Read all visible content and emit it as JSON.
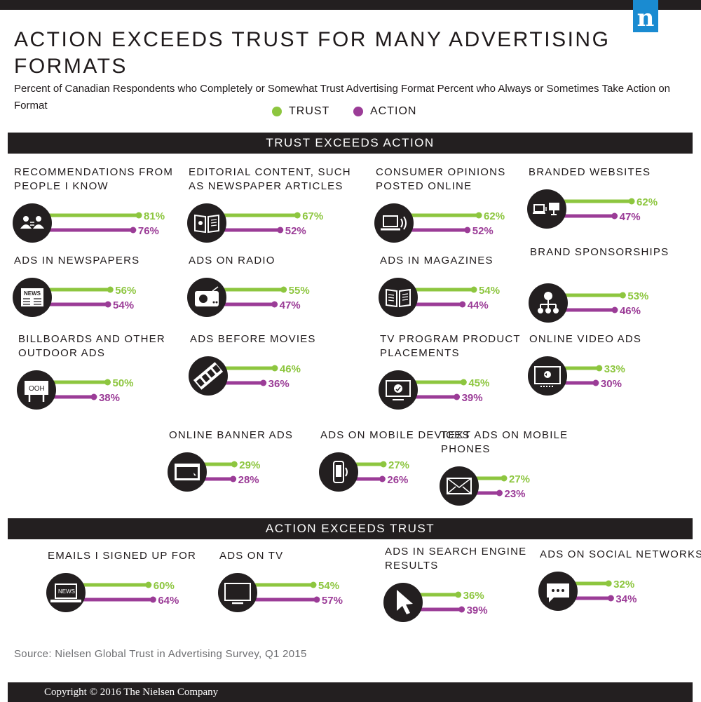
{
  "header": {
    "title": "ACTION EXCEEDS TRUST FOR MANY ADVERTISING FORMATS",
    "subtitle": "Percent of Canadian Respondents who Completely or Somewhat Trust Advertising Format Percent who Always or Sometimes Take Action on Format",
    "logo_letter": "n"
  },
  "legend": {
    "trust_label": "TRUST",
    "action_label": "ACTION"
  },
  "colors": {
    "trust": "#8dc63f",
    "action": "#9b3c97",
    "dark": "#231f20"
  },
  "sections": {
    "trust_exceeds": "TRUST EXCEEDS ACTION",
    "action_exceeds": "ACTION EXCEEDS TRUST"
  },
  "source": "Source: Nielsen Global Trust in Advertising Survey, Q1 2015",
  "copyright": "Copyright © 2016 The Nielsen Company",
  "chart_data": {
    "type": "bar",
    "title": "ACTION EXCEEDS TRUST FOR MANY ADVERTISING FORMATS",
    "series_labels": [
      "TRUST",
      "ACTION"
    ],
    "unit": "%",
    "groups": [
      {
        "name": "TRUST EXCEEDS ACTION",
        "items": [
          {
            "label": "RECOMMENDATIONS FROM PEOPLE I KNOW",
            "trust": 81,
            "action": 76,
            "icon": "people-exchange-icon",
            "trust_text": "81%",
            "action_text": "76%"
          },
          {
            "label": "EDITORIAL CONTENT, SUCH AS NEWSPAPER ARTICLES",
            "trust": 67,
            "action": 52,
            "icon": "open-magazine-icon",
            "trust_text": "67%",
            "action_text": "52%"
          },
          {
            "label": "CONSUMER OPINIONS POSTED ONLINE",
            "trust": 62,
            "action": 52,
            "icon": "laptop-broadcast-icon",
            "trust_text": "62%",
            "action_text": "52%"
          },
          {
            "label": "BRANDED WEBSITES",
            "trust": 62,
            "action": 47,
            "icon": "devices-icon",
            "trust_text": "62%",
            "action_text": "47%"
          },
          {
            "label": "ADS IN NEWSPAPERS",
            "trust": 56,
            "action": 54,
            "icon": "newspaper-icon",
            "trust_text": "56%",
            "action_text": "54%"
          },
          {
            "label": "ADS ON RADIO",
            "trust": 55,
            "action": 47,
            "icon": "radio-icon",
            "trust_text": "55%",
            "action_text": "47%"
          },
          {
            "label": "ADS IN MAGAZINES",
            "trust": 54,
            "action": 44,
            "icon": "magazine-icon",
            "trust_text": "54%",
            "action_text": "44%"
          },
          {
            "label": "BRAND SPONSORSHIPS",
            "trust": 53,
            "action": 46,
            "icon": "org-chart-icon",
            "trust_text": "53%",
            "action_text": "46%"
          },
          {
            "label": "BILLBOARDS AND OTHER OUTDOOR ADS",
            "trust": 50,
            "action": 38,
            "icon": "billboard-icon",
            "icon_text": "OOH",
            "trust_text": "50%",
            "action_text": "38%"
          },
          {
            "label": "ADS BEFORE MOVIES",
            "trust": 46,
            "action": 36,
            "icon": "film-strip-icon",
            "trust_text": "46%",
            "action_text": "36%"
          },
          {
            "label": "TV PROGRAM PRODUCT PLACEMENTS",
            "trust": 45,
            "action": 39,
            "icon": "tv-check-icon",
            "trust_text": "45%",
            "action_text": "39%"
          },
          {
            "label": "ONLINE VIDEO ADS",
            "trust": 33,
            "action": 30,
            "icon": "video-player-icon",
            "trust_text": "33%",
            "action_text": "30%"
          },
          {
            "label": "ONLINE BANNER ADS",
            "trust": 29,
            "action": 28,
            "icon": "browser-window-icon",
            "trust_text": "29%",
            "action_text": "28%"
          },
          {
            "label": "ADS ON MOBILE DEVICES",
            "trust": 27,
            "action": 26,
            "icon": "mobile-phone-icon",
            "trust_text": "27%",
            "action_text": "26%"
          },
          {
            "label": "TEXT ADS ON MOBILE PHONES",
            "trust": 27,
            "action": 23,
            "icon": "envelope-icon",
            "trust_text": "27%",
            "action_text": "23%"
          }
        ]
      },
      {
        "name": "ACTION EXCEEDS TRUST",
        "items": [
          {
            "label": "EMAILS I SIGNED UP FOR",
            "trust": 60,
            "action": 64,
            "icon": "laptop-news-icon",
            "icon_text": "NEWS",
            "trust_text": "60%",
            "action_text": "64%"
          },
          {
            "label": "ADS ON TV",
            "trust": 54,
            "action": 57,
            "icon": "television-icon",
            "trust_text": "54%",
            "action_text": "57%"
          },
          {
            "label": "ADS IN SEARCH ENGINE RESULTS",
            "trust": 36,
            "action": 39,
            "icon": "cursor-arrow-icon",
            "trust_text": "36%",
            "action_text": "39%"
          },
          {
            "label": "ADS ON SOCIAL NETWORKS",
            "trust": 32,
            "action": 34,
            "icon": "chat-bubble-icon",
            "trust_text": "32%",
            "action_text": "34%"
          }
        ]
      }
    ]
  }
}
